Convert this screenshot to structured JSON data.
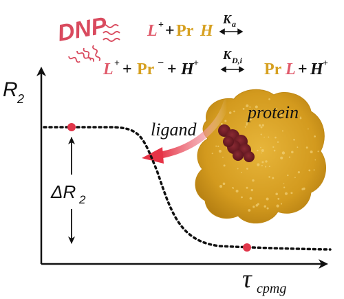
{
  "colors": {
    "ligand": "#e0596a",
    "protein": "#d6a020",
    "ink": "#111111",
    "dnp": "#d94a5e",
    "point": "#e0364a",
    "arrow": "#e63346",
    "protein_dark": "#6e1b25"
  },
  "icons": [
    "dnp-wave-icon",
    "equilibrium-arrow-icon"
  ],
  "dnp": {
    "label": "DNP"
  },
  "reaction1": {
    "ligand": "L",
    "ligand_charge": "+",
    "plus": "+",
    "protein": "Pr",
    "hydrogen": "H",
    "constant": "K",
    "constant_sub": "a"
  },
  "reaction2": {
    "ligand": "L",
    "ligand_charge": "+",
    "plus1": "+",
    "protein": "Pr",
    "protein_charge": "−",
    "plus2": "+",
    "hydrogen": "H",
    "hydrogen_charge": "+",
    "constant": "K",
    "constant_sub": "D,i",
    "product_protein": "Pr",
    "product_ligand": "L",
    "plus3": "+",
    "product_hydrogen": "H",
    "product_hydrogen_charge": "+"
  },
  "axes": {
    "y_label": "R",
    "y_sub": "2",
    "x_label": "τ",
    "x_sub": "cpmg"
  },
  "delta": {
    "label": "ΔR",
    "sub": "2"
  },
  "labels": {
    "ligand": "ligand",
    "protein": "protein"
  }
}
